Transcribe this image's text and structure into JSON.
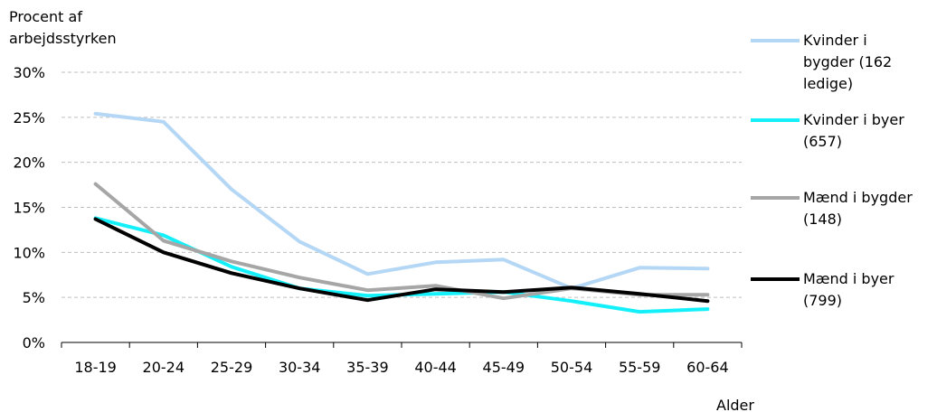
{
  "chart_data": {
    "type": "line",
    "ylabel": [
      "Procent af",
      "arbejdsstyrken"
    ],
    "xlabel": "Alder",
    "categories": [
      "18-19",
      "20-24",
      "25-29",
      "30-34",
      "35-39",
      "40-44",
      "45-49",
      "50-54",
      "55-59",
      "60-64"
    ],
    "ylim": [
      0,
      30
    ],
    "yticks": [
      0,
      5,
      10,
      15,
      20,
      25,
      30
    ],
    "ytick_labels": [
      "0%",
      "5%",
      "10%",
      "15%",
      "20%",
      "25%",
      "30%"
    ],
    "grid": true,
    "legend_position": "right",
    "series": [
      {
        "name": [
          "Kvinder i",
          "bygder (162",
          "ledige)"
        ],
        "color": "#b4d7f5",
        "values": [
          25.4,
          24.5,
          17.0,
          11.2,
          7.6,
          8.9,
          9.2,
          6.0,
          8.3,
          8.2
        ]
      },
      {
        "name": [
          "Kvinder i byer",
          "(657)"
        ],
        "color": "#14f0fa",
        "values": [
          13.8,
          11.9,
          8.4,
          6.0,
          5.2,
          5.4,
          5.6,
          4.6,
          3.4,
          3.7
        ]
      },
      {
        "name": [
          "Mænd i bygder",
          "(148)"
        ],
        "color": "#a6a6a6",
        "values": [
          17.6,
          11.3,
          9.0,
          7.2,
          5.8,
          6.3,
          4.9,
          6.0,
          5.3,
          5.3
        ]
      },
      {
        "name": [
          "Mænd i byer",
          "(799)"
        ],
        "color": "#000000",
        "values": [
          13.7,
          10.0,
          7.7,
          6.0,
          4.7,
          5.9,
          5.6,
          6.1,
          5.4,
          4.6
        ]
      }
    ]
  }
}
